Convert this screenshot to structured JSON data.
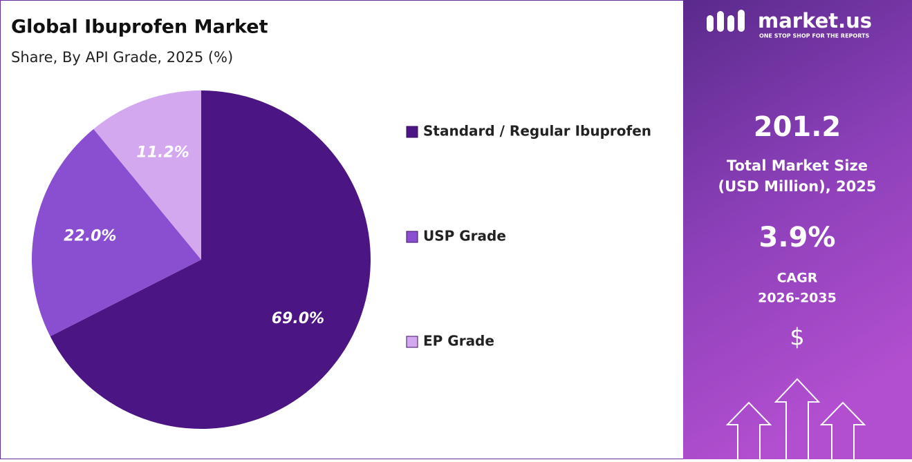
{
  "chart_data": {
    "type": "pie",
    "title": "Global Ibuprofen Market",
    "subtitle": "Share, By API Grade, 2025 (%)",
    "categories": [
      "Standard / Regular Ibuprofen",
      "USP Grade",
      "EP Grade"
    ],
    "values": [
      69.0,
      22.0,
      11.2
    ],
    "value_labels": [
      "69.0%",
      "22.0%",
      "11.2%"
    ],
    "colors": [
      "#4b1584",
      "#8a4fd0",
      "#d3a8ee"
    ],
    "legend": "right"
  },
  "panel": {
    "brand": "market.us",
    "tagline": "ONE STOP SHOP FOR THE REPORTS",
    "market_size": "201.2",
    "market_size_label": [
      "Total Market Size",
      "(USD Million), 2025"
    ],
    "cagr": "3.9%",
    "cagr_label": [
      "CAGR",
      "2026-2035"
    ],
    "currency": "$"
  }
}
